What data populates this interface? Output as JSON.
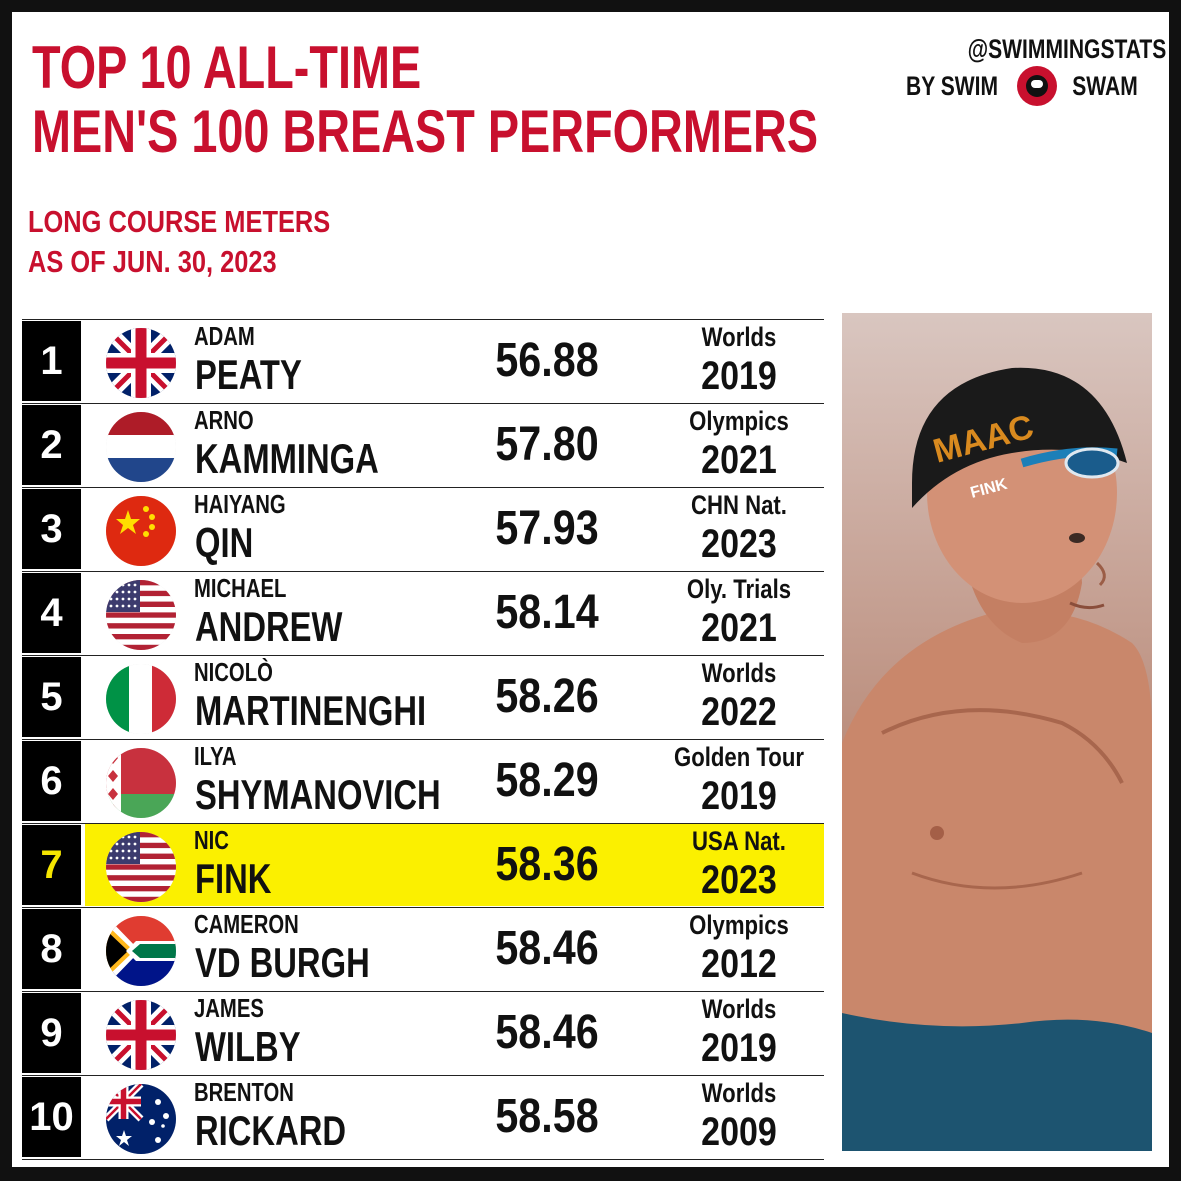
{
  "title": {
    "line1": "TOP 10 ALL-TIME",
    "line2": "MEN'S 100 BREAST PERFORMERS"
  },
  "subtitle": {
    "line1": "LONG COURSE METERS",
    "line2": "AS OF JUN. 30, 2023"
  },
  "brand": {
    "handle": "@SWIMMINGSTATS",
    "by": "BY SWIM",
    "swam": "SWAM",
    "logo_icon": "swimswam-logo-icon"
  },
  "colors": {
    "accent": "#c8102e",
    "highlight": "#fbf000",
    "rank_bg": "#000000"
  },
  "rows": [
    {
      "rank": "1",
      "first": "ADAM",
      "last": "PEATY",
      "time": "56.88",
      "meet": "Worlds",
      "year": "2019",
      "flag": "gbr-flag-icon"
    },
    {
      "rank": "2",
      "first": "ARNO",
      "last": "KAMMINGA",
      "time": "57.80",
      "meet": "Olympics",
      "year": "2021",
      "flag": "ned-flag-icon"
    },
    {
      "rank": "3",
      "first": "HAIYANG",
      "last": "QIN",
      "time": "57.93",
      "meet": "CHN Nat.",
      "year": "2023",
      "flag": "chn-flag-icon"
    },
    {
      "rank": "4",
      "first": "MICHAEL",
      "last": "ANDREW",
      "time": "58.14",
      "meet": "Oly. Trials",
      "year": "2021",
      "flag": "usa-flag-icon"
    },
    {
      "rank": "5",
      "first": "NICOLÒ",
      "last": "MARTINENGHI",
      "time": "58.26",
      "meet": "Worlds",
      "year": "2022",
      "flag": "ita-flag-icon"
    },
    {
      "rank": "6",
      "first": "ILYA",
      "last": "SHYMANOVICH",
      "time": "58.29",
      "meet": "Golden Tour",
      "year": "2019",
      "flag": "blr-flag-icon"
    },
    {
      "rank": "7",
      "first": "NIC",
      "last": "FINK",
      "time": "58.36",
      "meet": "USA Nat.",
      "year": "2023",
      "flag": "usa-flag-icon",
      "highlighted": true
    },
    {
      "rank": "8",
      "first": "CAMERON",
      "last": "VD BURGH",
      "time": "58.46",
      "meet": "Olympics",
      "year": "2012",
      "flag": "rsa-flag-icon"
    },
    {
      "rank": "9",
      "first": "JAMES",
      "last": "WILBY",
      "time": "58.46",
      "meet": "Worlds",
      "year": "2019",
      "flag": "gbr-flag-icon"
    },
    {
      "rank": "10",
      "first": "BRENTON",
      "last": "RICKARD",
      "time": "58.58",
      "meet": "Worlds",
      "year": "2009",
      "flag": "aus-flag-icon"
    }
  ],
  "photo": {
    "subject": "swimmer-photo",
    "cap_text": "MAAC",
    "cap_name": "FINK"
  }
}
